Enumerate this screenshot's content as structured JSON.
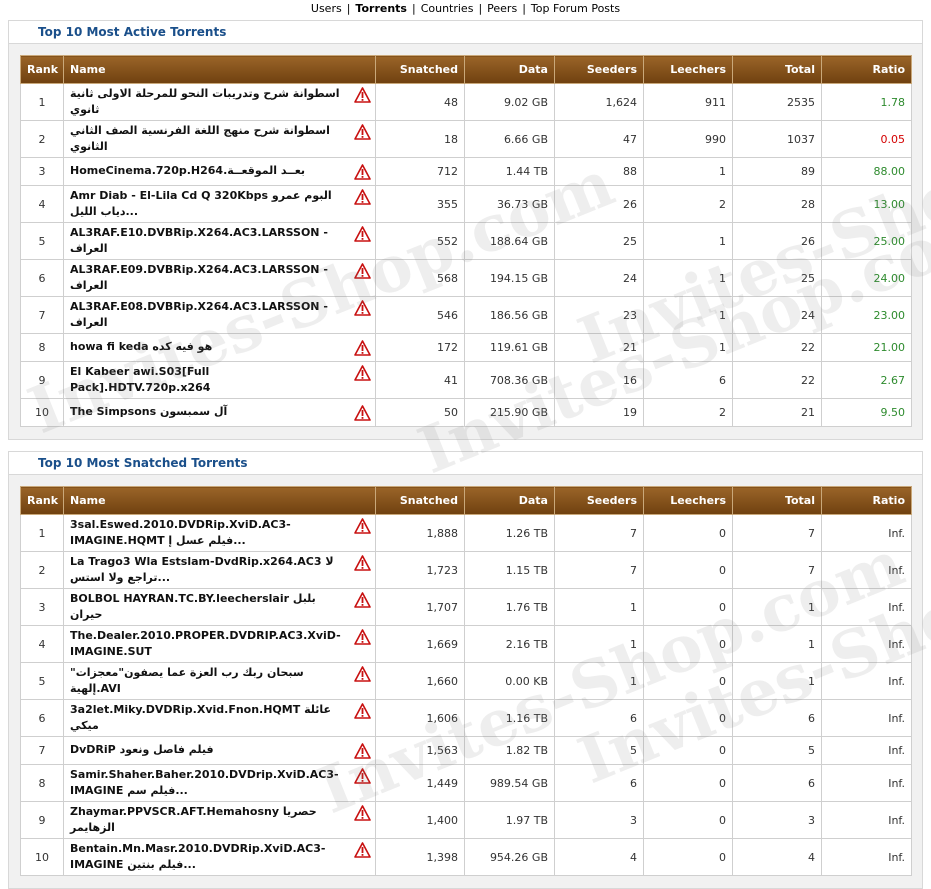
{
  "nav": [
    "Users",
    "Torrents",
    "Countries",
    "Peers",
    "Top Forum Posts"
  ],
  "watermark": "Invites-Shop.com",
  "sections": [
    {
      "title": "Top 10 Most Active Torrents",
      "table": {
        "headers": [
          "Rank",
          "Name",
          "Snatched",
          "Data",
          "Seeders",
          "Leechers",
          "Total",
          "Ratio"
        ],
        "rows": [
          [
            "1",
            "اسطوانة شرح وتدريبات النحو للمرحلة الاولى ثانية ثانوي",
            "48",
            "9.02 GB",
            "1,624",
            "911",
            "2535",
            "1.78"
          ],
          [
            "2",
            "اسطوانة شرح منهج اللغة الفرنسية الصف الثاني الثانوي",
            "18",
            "6.66 GB",
            "47",
            "990",
            "1037",
            "0.05"
          ],
          [
            "3",
            "HomeCinema.720p.H264.بعــد الموقعــة",
            "712",
            "1.44 TB",
            "88",
            "1",
            "89",
            "88.00"
          ],
          [
            "4",
            "Amr Diab - El-Lila Cd Q 320Kbps البوم عمرو دياب الليل...",
            "355",
            "36.73 GB",
            "26",
            "2",
            "28",
            "13.00"
          ],
          [
            "5",
            "AL3RAF.E10.DVBRip.X264.AC3.LARSSON - العراف",
            "552",
            "188.64 GB",
            "25",
            "1",
            "26",
            "25.00"
          ],
          [
            "6",
            "AL3RAF.E09.DVBRip.X264.AC3.LARSSON - العراف",
            "568",
            "194.15 GB",
            "24",
            "1",
            "25",
            "24.00"
          ],
          [
            "7",
            "AL3RAF.E08.DVBRip.X264.AC3.LARSSON - العراف",
            "546",
            "186.56 GB",
            "23",
            "1",
            "24",
            "23.00"
          ],
          [
            "8",
            "howa fi keda هو فيه كده",
            "172",
            "119.61 GB",
            "21",
            "1",
            "22",
            "21.00"
          ],
          [
            "9",
            "El Kabeer awi.S03[Full Pack].HDTV.720p.x264",
            "41",
            "708.36 GB",
            "16",
            "6",
            "22",
            "2.67"
          ],
          [
            "10",
            "The Simpsons آل سمبسون",
            "50",
            "215.90 GB",
            "19",
            "2",
            "21",
            "9.50"
          ]
        ]
      }
    },
    {
      "title": "Top 10 Most Snatched Torrents",
      "table": {
        "headers": [
          "Rank",
          "Name",
          "Snatched",
          "Data",
          "Seeders",
          "Leechers",
          "Total",
          "Ratio"
        ],
        "rows": [
          [
            "1",
            "3sal.Eswed.2010.DVDRip.XviD.AC3-IMAGINE.HQMT فيلم عسل إ...",
            "1,888",
            "1.26 TB",
            "7",
            "0",
            "7",
            "Inf."
          ],
          [
            "2",
            "La Trago3 Wla Estslam-DvdRip.x264.AC3 لا تراجع ولا استس...",
            "1,723",
            "1.15 TB",
            "7",
            "0",
            "7",
            "Inf."
          ],
          [
            "3",
            "BOLBOL HAYRAN.TC.BY.leecherslair بلبل حيران",
            "1,707",
            "1.76 TB",
            "1",
            "0",
            "1",
            "Inf."
          ],
          [
            "4",
            "The.Dealer.2010.PROPER.DVDRIP.AC3.XviD-IMAGINE.SUT",
            "1,669",
            "2.16 TB",
            "1",
            "0",
            "1",
            "Inf."
          ],
          [
            "5",
            "\"سبحان ربك رب العزة عما يصفون\"معجزات إلهية.AVI",
            "1,660",
            "0.00 KB",
            "1",
            "0",
            "1",
            "Inf."
          ],
          [
            "6",
            "3a2let.Miky.DVDRip.Xvid.Fnon.HQMT عائلة ميكي",
            "1,606",
            "1.16 TB",
            "6",
            "0",
            "6",
            "Inf."
          ],
          [
            "7",
            "DvDRiP فيلم فاصل ونعود",
            "1,563",
            "1.82 TB",
            "5",
            "0",
            "5",
            "Inf."
          ],
          [
            "8",
            "Samir.Shaher.Baher.2010.DVDrip.XviD.AC3-IMAGINE فيلم سم...",
            "1,449",
            "989.54 GB",
            "6",
            "0",
            "6",
            "Inf."
          ],
          [
            "9",
            "Zhaymar.PPVSCR.AFT.Hemahosny حصريا الزهايمر",
            "1,400",
            "1.97 TB",
            "3",
            "0",
            "3",
            "Inf."
          ],
          [
            "10",
            "Bentain.Mn.Masr.2010.DVDRip.XviD.AC3-IMAGINE فيلم بنتين...",
            "1,398",
            "954.26 GB",
            "4",
            "0",
            "4",
            "Inf."
          ]
        ]
      }
    }
  ]
}
